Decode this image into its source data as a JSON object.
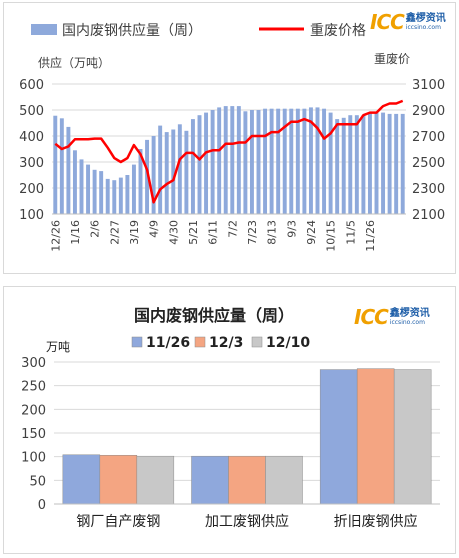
{
  "logo": {
    "brand": "ICC",
    "name": "鑫椤资讯",
    "url": "iccsino.com"
  },
  "chart_data": [
    {
      "type": "bar+line",
      "legend": {
        "bar_label": "国内废钢供应量（周）",
        "line_label": "重废价格",
        "position": "top"
      },
      "y_left_label": "供应（万吨）",
      "y_right_label": "重废价",
      "ylim_left": [
        100,
        600
      ],
      "ylim_right": [
        2100,
        3100
      ],
      "yticks_left": [
        "100",
        "200",
        "300",
        "400",
        "500",
        "600"
      ],
      "yticks_right": [
        "2100",
        "2300",
        "2500",
        "2700",
        "2900",
        "3100"
      ],
      "xtick_labels": [
        "12/26",
        "1/16",
        "2/6",
        "2/27",
        "3/19",
        "4/9",
        "4/30",
        "5/21",
        "6/11",
        "7/2",
        "7/23",
        "8/13",
        "9/3",
        "9/24",
        "10/15",
        "11/5",
        "11/26"
      ],
      "grid": true,
      "colors": {
        "bar": "#8ea9db",
        "line": "#ff0000"
      },
      "series": [
        {
          "name": "国内废钢供应量（周）",
          "kind": "bar",
          "values": [
            478,
            468,
            435,
            345,
            310,
            290,
            270,
            265,
            235,
            230,
            240,
            250,
            290,
            350,
            385,
            400,
            440,
            415,
            425,
            445,
            420,
            465,
            480,
            490,
            500,
            510,
            515,
            515,
            515,
            495,
            500,
            500,
            505,
            505,
            505,
            505,
            505,
            505,
            505,
            510,
            510,
            505,
            490,
            465,
            470,
            480,
            480,
            480,
            490,
            490,
            490,
            485,
            485,
            485
          ]
        },
        {
          "name": "重废价格",
          "kind": "line",
          "values": [
            2640,
            2600,
            2620,
            2675,
            2675,
            2675,
            2680,
            2680,
            2610,
            2530,
            2500,
            2530,
            2630,
            2560,
            2440,
            2190,
            2290,
            2330,
            2360,
            2520,
            2570,
            2570,
            2520,
            2575,
            2590,
            2590,
            2640,
            2640,
            2650,
            2650,
            2700,
            2700,
            2700,
            2730,
            2730,
            2770,
            2810,
            2810,
            2830,
            2810,
            2760,
            2680,
            2720,
            2790,
            2790,
            2790,
            2790,
            2860,
            2880,
            2880,
            2930,
            2950,
            2950,
            2970
          ]
        }
      ]
    },
    {
      "type": "bar",
      "title": "国内废钢供应量（周）",
      "ylabel": "万吨",
      "ylim": [
        0,
        300
      ],
      "yticks": [
        "0",
        "50",
        "100",
        "150",
        "200",
        "250",
        "300"
      ],
      "categories": [
        "钢厂自产废钢",
        "加工废钢供应",
        "折旧废钢供应"
      ],
      "legend_position": "top",
      "grid": true,
      "series": [
        {
          "name": "11/26",
          "color": "#8fa8dc",
          "values": [
            104,
            101,
            284
          ]
        },
        {
          "name": "12/3",
          "color": "#f4a582",
          "values": [
            103,
            101,
            286
          ]
        },
        {
          "name": "12/10",
          "color": "#c8c8c8",
          "values": [
            101,
            101,
            284
          ]
        }
      ]
    }
  ]
}
